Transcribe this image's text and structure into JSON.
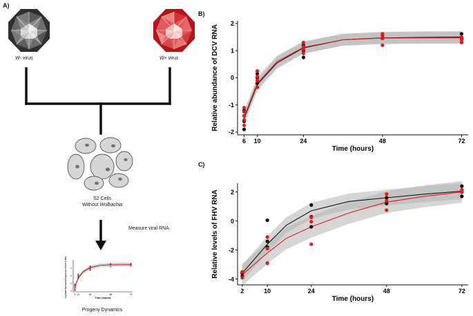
{
  "panels": {
    "a_label": "A)",
    "b_label": "B)",
    "c_label": "C)"
  },
  "schematic": {
    "w_minus_prefix": "W-",
    "w_minus_suffix": " virus",
    "w_plus_prefix": "W+",
    "w_plus_suffix": " virus",
    "cells_line1": "S2 Cells",
    "cells_line2_prefix": "Without ",
    "cells_line2_italic": "Wolbachia",
    "measure_label": "Measure viral RNA",
    "progeny_label": "Progeny Dynamics",
    "thumb_ylabel": "Log Mean Normalised Expression of DCV to RP-L32",
    "thumb_xlabel": "Time (hours)",
    "thumb_xticks": [
      "6",
      "10",
      "24",
      "48",
      "72"
    ],
    "thumb_yticks": [
      "1",
      "0",
      "-1",
      "-2"
    ]
  },
  "colors": {
    "w_minus_dark": "#3a3a3a",
    "w_minus_light": "#bdbdbd",
    "w_plus_dark": "#c0262a",
    "w_plus_light": "#f4a7a4",
    "series_black": "#111111",
    "series_red": "#e8171c",
    "band": "#b5b5b5",
    "cell_fill": "#d6d6d6",
    "nucleus": "#707070"
  },
  "chart_data": [
    {
      "type": "scatter",
      "title": "",
      "xlabel": "Time (hours)",
      "ylabel": "Relative abundance of DCV RNA",
      "xlim": [
        4,
        74
      ],
      "ylim": [
        -2.1,
        2.1
      ],
      "xticks": [
        6,
        10,
        24,
        48,
        72
      ],
      "yticks": [
        -2,
        -1,
        0,
        1,
        2
      ],
      "series": [
        {
          "name": "W- virus",
          "color": "#111111",
          "points": [
            [
              6,
              -1.9
            ],
            [
              6,
              -1.6
            ],
            [
              6,
              -1.4
            ],
            [
              6,
              -1.2
            ],
            [
              10,
              0.15
            ],
            [
              10,
              0.0
            ],
            [
              10,
              -0.2
            ],
            [
              24,
              0.75
            ],
            [
              24,
              1.0
            ],
            [
              24,
              1.2
            ],
            [
              48,
              1.45
            ],
            [
              48,
              1.55
            ],
            [
              72,
              1.62
            ],
            [
              72,
              1.45
            ]
          ],
          "fit": [
            [
              6,
              -1.5
            ],
            [
              10,
              -0.25
            ],
            [
              16,
              0.55
            ],
            [
              24,
              1.1
            ],
            [
              36,
              1.4
            ],
            [
              48,
              1.47
            ],
            [
              60,
              1.49
            ],
            [
              72,
              1.5
            ]
          ]
        },
        {
          "name": "W+ virus",
          "color": "#e8171c",
          "points": [
            [
              6,
              -1.75
            ],
            [
              6,
              -1.55
            ],
            [
              6,
              -1.4
            ],
            [
              6,
              -1.25
            ],
            [
              6,
              -1.1
            ],
            [
              10,
              0.25
            ],
            [
              10,
              0.05
            ],
            [
              10,
              -0.1
            ],
            [
              10,
              -0.35
            ],
            [
              24,
              0.9
            ],
            [
              24,
              1.05
            ],
            [
              24,
              1.15
            ],
            [
              24,
              1.3
            ],
            [
              48,
              1.2
            ],
            [
              48,
              1.45
            ],
            [
              48,
              1.55
            ],
            [
              48,
              1.62
            ],
            [
              72,
              1.3
            ],
            [
              72,
              1.4
            ],
            [
              72,
              1.5
            ]
          ],
          "fit": [
            [
              6,
              -1.45
            ],
            [
              10,
              -0.2
            ],
            [
              16,
              0.6
            ],
            [
              24,
              1.12
            ],
            [
              36,
              1.4
            ],
            [
              48,
              1.46
            ],
            [
              60,
              1.47
            ],
            [
              72,
              1.47
            ]
          ]
        }
      ]
    },
    {
      "type": "scatter",
      "title": "",
      "xlabel": "Time (hours)",
      "ylabel": "Relative levels of FHV RNA",
      "xlim": [
        0.5,
        74
      ],
      "ylim": [
        -4.4,
        2.6
      ],
      "xticks": [
        2,
        10,
        24,
        48,
        72
      ],
      "yticks": [
        -4,
        -2,
        0,
        2
      ],
      "series": [
        {
          "name": "W- virus",
          "color": "#111111",
          "points": [
            [
              2,
              -3.6
            ],
            [
              2,
              -3.8
            ],
            [
              10,
              0.05
            ],
            [
              10,
              -1.4
            ],
            [
              10,
              -1.8
            ],
            [
              24,
              1.1
            ],
            [
              24,
              0.3
            ],
            [
              24,
              -0.4
            ],
            [
              48,
              1.2
            ],
            [
              48,
              1.6
            ],
            [
              72,
              2.4
            ],
            [
              72,
              2.0
            ],
            [
              72,
              1.7
            ]
          ],
          "fit": [
            [
              2,
              -3.6
            ],
            [
              10,
              -1.6
            ],
            [
              16,
              -0.3
            ],
            [
              24,
              0.7
            ],
            [
              36,
              1.35
            ],
            [
              48,
              1.6
            ],
            [
              60,
              1.85
            ],
            [
              72,
              2.05
            ]
          ]
        },
        {
          "name": "W+ virus",
          "color": "#e8171c",
          "points": [
            [
              2,
              -3.5
            ],
            [
              2,
              -3.9
            ],
            [
              10,
              -1.1
            ],
            [
              10,
              -1.9
            ],
            [
              10,
              -2.9
            ],
            [
              24,
              0.25
            ],
            [
              24,
              -0.05
            ],
            [
              24,
              -1.6
            ],
            [
              48,
              0.75
            ],
            [
              48,
              1.4
            ],
            [
              48,
              1.85
            ],
            [
              72,
              2.15
            ],
            [
              72,
              2.0
            ]
          ],
          "fit": [
            [
              2,
              -3.7
            ],
            [
              10,
              -2.2
            ],
            [
              16,
              -1.2
            ],
            [
              24,
              -0.4
            ],
            [
              36,
              0.55
            ],
            [
              48,
              1.3
            ],
            [
              60,
              1.7
            ],
            [
              72,
              2.0
            ]
          ]
        }
      ]
    }
  ]
}
